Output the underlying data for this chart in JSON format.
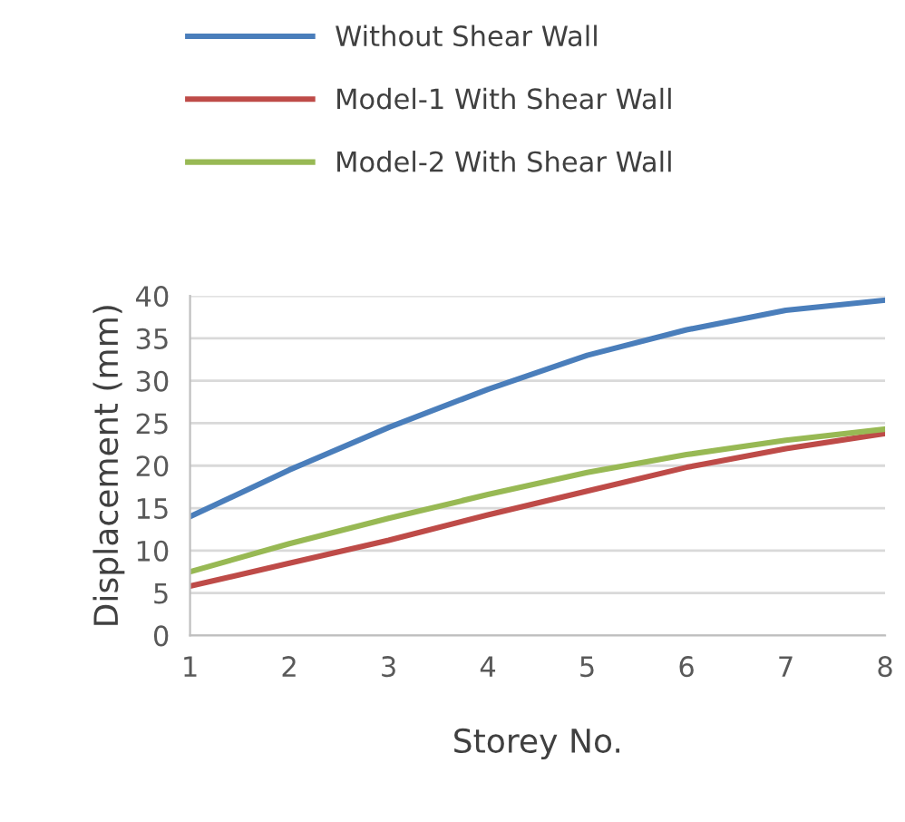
{
  "chart_data": {
    "type": "line",
    "xlabel": "Storey No.",
    "ylabel": "Displacement (mm)",
    "x": [
      1,
      2,
      3,
      4,
      5,
      6,
      7,
      8
    ],
    "series": [
      {
        "name": "Without Shear Wall",
        "color": "#4a7ebb",
        "values": [
          14,
          19.5,
          24.5,
          29,
          33,
          36,
          38.3,
          39.5
        ]
      },
      {
        "name": "Model-1 With Shear Wall",
        "color": "#be4b48",
        "values": [
          5.8,
          8.5,
          11.2,
          14.2,
          17,
          19.8,
          22,
          23.8
        ]
      },
      {
        "name": "Model-2 With Shear Wall",
        "color": "#98b954",
        "values": [
          7.5,
          10.8,
          13.8,
          16.6,
          19.2,
          21.3,
          23,
          24.3
        ]
      }
    ],
    "xlim": [
      1,
      8
    ],
    "xticks": [
      1,
      2,
      3,
      4,
      5,
      6,
      7,
      8
    ],
    "ylim": [
      0,
      40
    ],
    "yticks": [
      0,
      5,
      10,
      15,
      20,
      25,
      30,
      35,
      40
    ],
    "grid": "y",
    "legend": "top",
    "marker": "none",
    "line_style": "solid"
  }
}
